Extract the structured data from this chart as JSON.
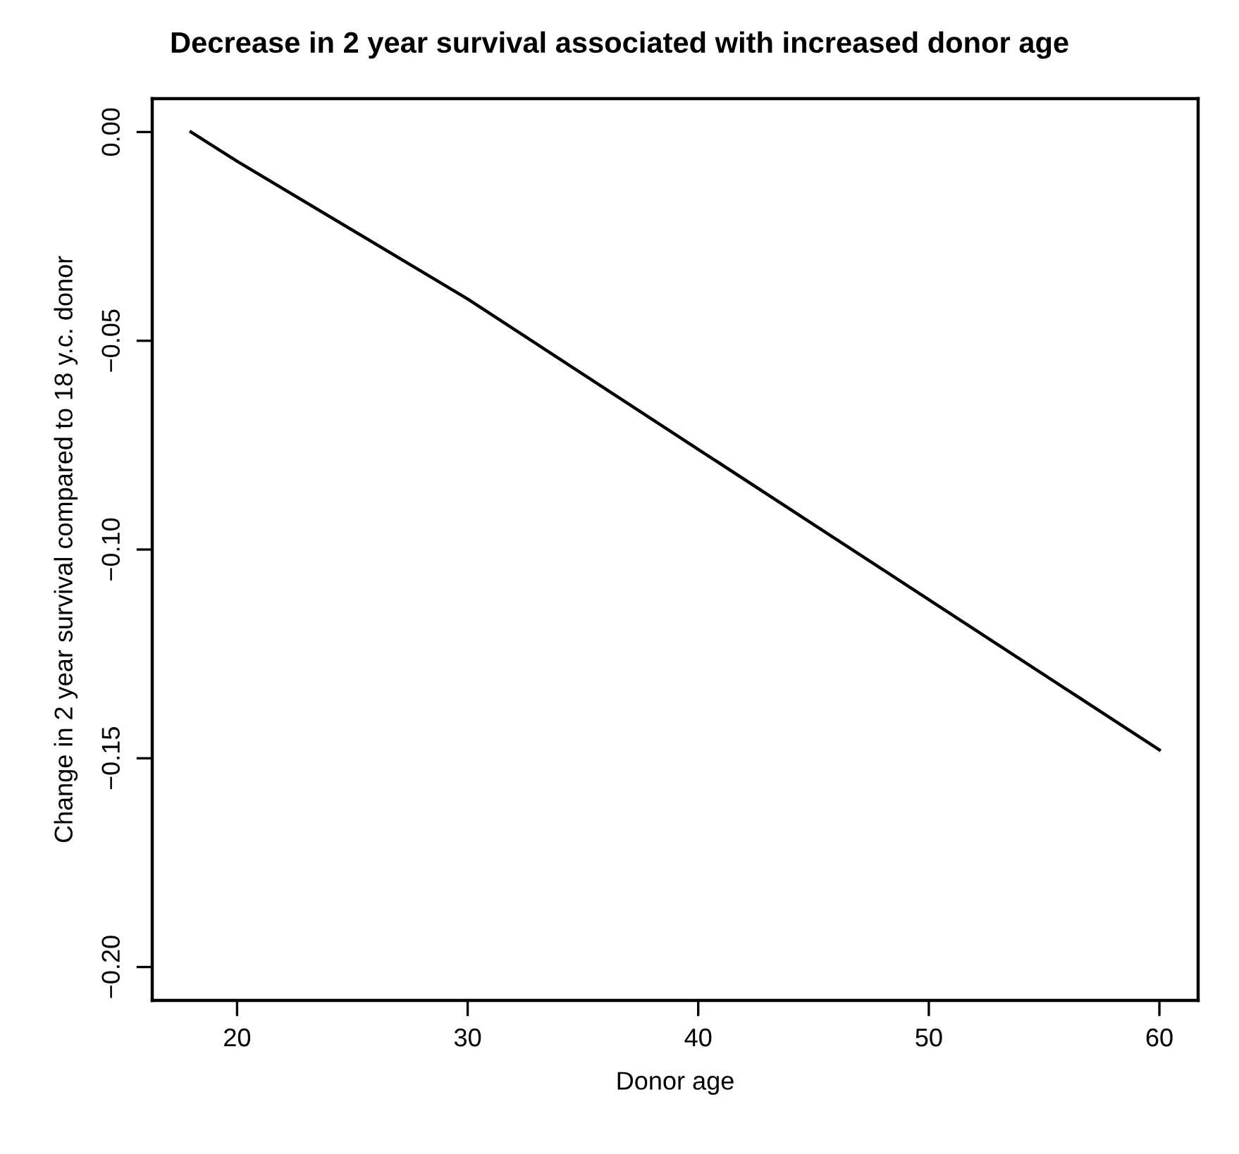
{
  "chart_data": {
    "type": "line",
    "title": "Decrease in 2 year survival associated with increased donor age",
    "xlabel": "Donor age",
    "ylabel": "Change in 2 year survival compared to 18 y.c. donor",
    "x": [
      18,
      20,
      30,
      40,
      50,
      60
    ],
    "series": [
      {
        "color": "#000000",
        "values": [
          0,
          -0.007,
          -0.04,
          -0.076,
          -0.112,
          -0.148
        ]
      }
    ],
    "xlim": [
      16.32,
      61.68
    ],
    "ylim": [
      -0.208,
      0.008
    ],
    "xticks": [
      20,
      30,
      40,
      50,
      60
    ],
    "yticks": [
      {
        "value": 0,
        "label": "0.00"
      },
      {
        "value": -0.05,
        "label": "−0.05"
      },
      {
        "value": -0.1,
        "label": "−0.10"
      },
      {
        "value": -0.15,
        "label": "−0.15"
      },
      {
        "value": -0.2,
        "label": "−0.20"
      }
    ],
    "marker": "none",
    "line_style": "solid"
  }
}
